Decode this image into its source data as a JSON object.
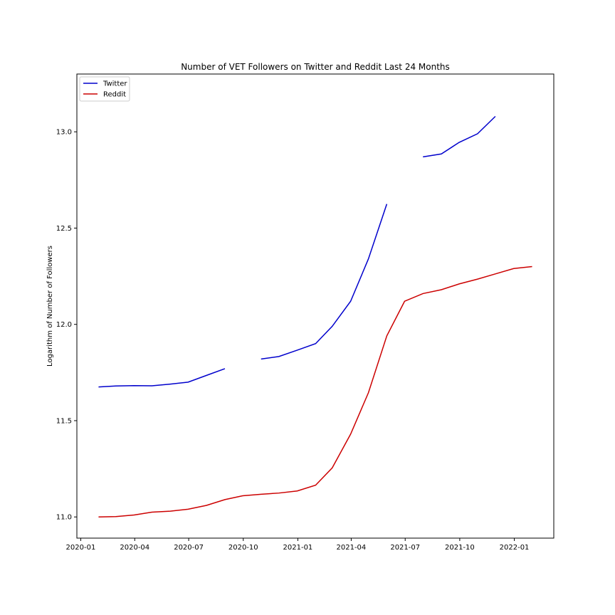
{
  "chart_data": {
    "type": "line",
    "title": "Number of VET Followers on Twitter and Reddit Last 24 Months",
    "xlabel": "",
    "ylabel": "Logarithm of Number of Followers",
    "x": [
      "2020-01-31",
      "2020-02-29",
      "2020-03-31",
      "2020-04-30",
      "2020-05-31",
      "2020-06-30",
      "2020-07-31",
      "2020-08-31",
      "2020-09-30",
      "2020-10-31",
      "2020-11-30",
      "2020-12-31",
      "2021-01-31",
      "2021-02-28",
      "2021-03-31",
      "2021-04-30",
      "2021-05-31",
      "2021-06-30",
      "2021-07-31",
      "2021-08-31",
      "2021-09-30",
      "2021-10-31",
      "2021-11-30",
      "2021-12-31",
      "2022-01-31"
    ],
    "x_ticks": [
      "2020-01",
      "2020-04",
      "2020-07",
      "2020-10",
      "2021-01",
      "2021-04",
      "2021-07",
      "2021-10",
      "2022-01"
    ],
    "y_ticks": [
      "11.0",
      "11.5",
      "12.0",
      "12.5",
      "13.0"
    ],
    "ylim": [
      10.89,
      13.3
    ],
    "grid": false,
    "legend_position": "top-left",
    "series": [
      {
        "name": "Twitter",
        "color": "#0000cc",
        "values": [
          11.675,
          11.68,
          11.682,
          11.681,
          11.69,
          11.7,
          11.735,
          11.77,
          null,
          11.82,
          11.833,
          11.866,
          11.9,
          11.99,
          12.12,
          12.34,
          12.625,
          null,
          12.87,
          12.885,
          12.945,
          12.99,
          13.08,
          null,
          null
        ]
      },
      {
        "name": "Reddit",
        "color": "#cc0000",
        "values": [
          11.0,
          11.002,
          11.01,
          11.025,
          11.03,
          11.04,
          11.06,
          11.09,
          11.11,
          11.118,
          11.124,
          11.135,
          11.165,
          11.255,
          11.43,
          11.645,
          11.94,
          12.12,
          12.16,
          12.18,
          12.21,
          12.235,
          12.262,
          12.29,
          12.3
        ]
      }
    ]
  }
}
